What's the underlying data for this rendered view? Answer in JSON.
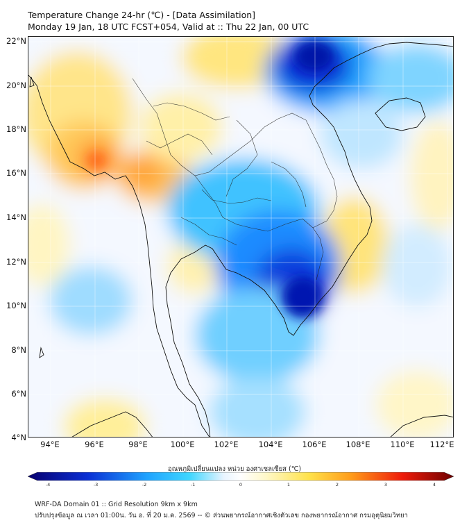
{
  "title": {
    "line1": "Temperature Change 24-hr (℃) - [Data Assimilation]",
    "line2": "Monday 19 Jan, 18 UTC FCST+054, Valid at :: Thu 22 Jan, 00 UTC"
  },
  "lat_labels": [
    "22°N",
    "20°N",
    "18°N",
    "16°N",
    "14°N",
    "12°N",
    "10°N",
    "8°N",
    "6°N",
    "4°N"
  ],
  "lon_labels": [
    "94°E",
    "96°E",
    "98°E",
    "100°E",
    "102°E",
    "104°E",
    "106°E",
    "108°E",
    "110°E",
    "112°E"
  ],
  "colorbar": {
    "title": "อุณหภูมิเปลี่ยนแปลง หน่วย องศาเซลเซียส (℃)",
    "ticks": [
      "-4",
      "-3",
      "-2",
      "-1",
      "0",
      "1",
      "2",
      "3",
      "4"
    ],
    "colors": {
      "min": "#08006e",
      "dark_blue": "#0a2fd4",
      "blue": "#1fa3ff",
      "cyan": "#3fd6ff",
      "pale": "#e8f4ff",
      "white": "#ffffff",
      "pale_yellow": "#fff8c8",
      "yellow": "#ffe24a",
      "orange": "#ff9b1a",
      "red": "#ee1b0a",
      "max": "#6e0000"
    }
  },
  "footer": {
    "line1": "WRF-DA Domain 01 :: Grid Resolution 9km x 9km",
    "line2": "ปรับปรุงข้อมูล ณ เวลา 01:00น. วัน อ. ที่ 20 ม.ค. 2569 -- © ส่วนพยากรณ์อากาศเชิงตัวเลข กองพยากรณ์อากาศ กรมอุตุนิยมวิทยา"
  }
}
